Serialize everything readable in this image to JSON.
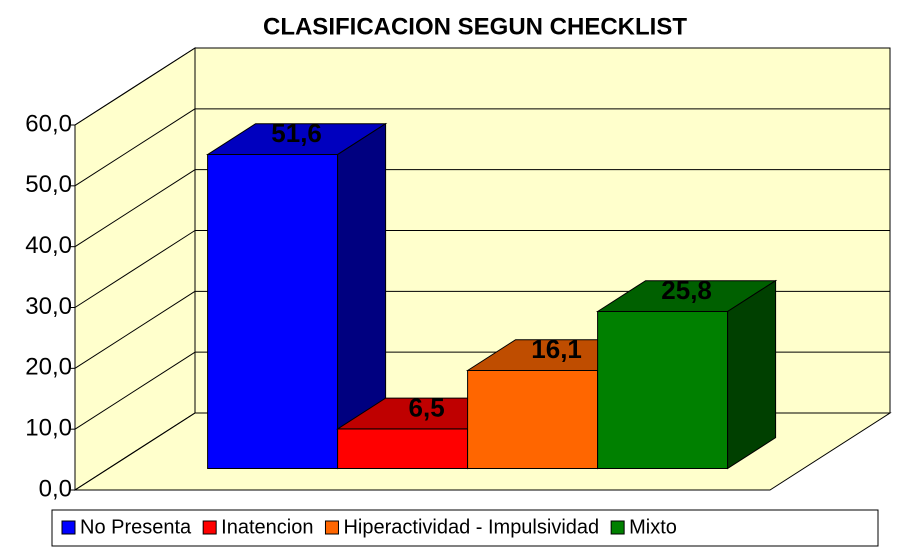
{
  "chart_data": {
    "type": "bar3d",
    "title": "CLASIFICACION SEGUN CHECKLIST",
    "series": [
      {
        "name": "No Presenta",
        "color": "#0000ff",
        "values": [
          51.6
        ],
        "value_labels": [
          "51,6"
        ]
      },
      {
        "name": "Inatencion",
        "color": "#ff0000",
        "values": [
          6.5
        ],
        "value_labels": [
          "6,5"
        ]
      },
      {
        "name": "Hiperactividad - Impulsividad",
        "color": "#ff6600",
        "values": [
          16.1
        ],
        "value_labels": [
          "16,1"
        ]
      },
      {
        "name": "Mixto",
        "color": "#008000",
        "values": [
          25.8
        ],
        "value_labels": [
          "25,8"
        ]
      }
    ],
    "ylim": [
      0,
      60
    ],
    "yticks": [
      {
        "value": 0,
        "label": "0,0"
      },
      {
        "value": 10,
        "label": "10,0"
      },
      {
        "value": 20,
        "label": "20,0"
      },
      {
        "value": 30,
        "label": "30,0"
      },
      {
        "value": 40,
        "label": "40,0"
      },
      {
        "value": 50,
        "label": "50,0"
      },
      {
        "value": 60,
        "label": "60,0"
      }
    ],
    "grid": true
  }
}
